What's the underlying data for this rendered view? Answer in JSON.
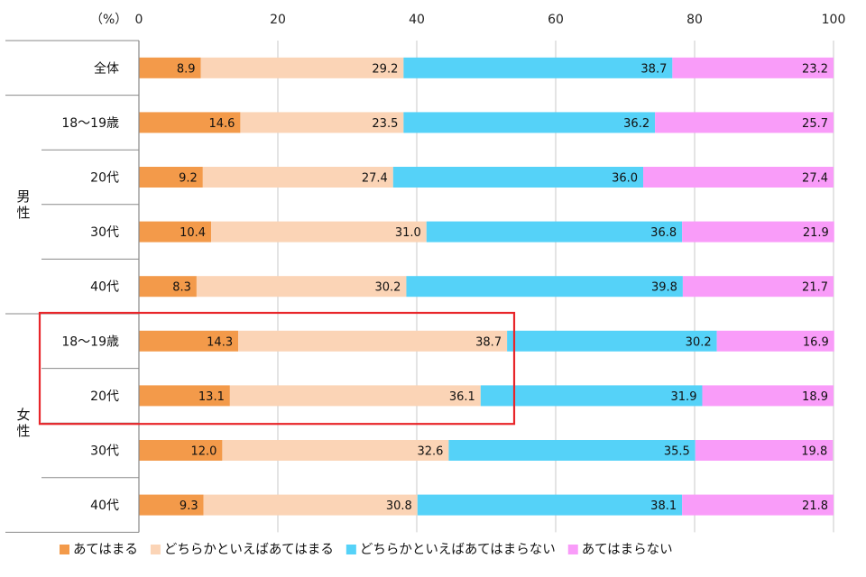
{
  "chart_data": {
    "type": "bar",
    "orientation": "horizontal",
    "stacked": true,
    "unit_label": "（%）",
    "xlim": [
      0,
      100
    ],
    "x_ticks": [
      0,
      20,
      40,
      60,
      80,
      100
    ],
    "grid": true,
    "legend_position": "bottom",
    "groups": [
      {
        "label": "",
        "rows": [
          0
        ]
      },
      {
        "label": "男性",
        "rows": [
          1,
          2,
          3,
          4
        ]
      },
      {
        "label": "女性",
        "rows": [
          5,
          6,
          7,
          8
        ]
      }
    ],
    "categories": [
      "全体",
      "18〜19歳",
      "20代",
      "30代",
      "40代",
      "18〜19歳",
      "20代",
      "30代",
      "40代"
    ],
    "series": [
      {
        "name": "あてはまる",
        "color": "#f39a4a",
        "values": [
          8.9,
          14.6,
          9.2,
          10.4,
          8.3,
          14.3,
          13.1,
          12.0,
          9.3
        ]
      },
      {
        "name": "どちらかといえばあてはまる",
        "color": "#fbd4b6",
        "values": [
          29.2,
          23.5,
          27.4,
          31.0,
          30.2,
          38.7,
          36.1,
          32.6,
          30.8
        ]
      },
      {
        "name": "どちらかといえばあてはまらない",
        "color": "#55d2f8",
        "values": [
          38.7,
          36.2,
          36.0,
          36.8,
          39.8,
          30.2,
          31.9,
          35.5,
          38.1
        ]
      },
      {
        "name": "あてはまらない",
        "color": "#f99cf9",
        "values": [
          23.2,
          25.7,
          27.4,
          21.9,
          21.7,
          16.9,
          18.9,
          19.8,
          21.8
        ]
      }
    ],
    "highlight": {
      "rows": [
        5,
        6
      ],
      "color": "#e8262a"
    }
  }
}
